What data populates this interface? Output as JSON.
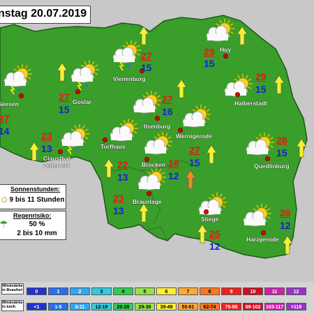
{
  "title": "nstag 20.07.2019",
  "sun": {
    "label": "Sonnenstunden:",
    "value": "9 bis 11 Stunden"
  },
  "rain": {
    "label": "Regenrisiko:",
    "percent": "50 %",
    "amount": "2 bis 10 mm"
  },
  "cities": [
    {
      "name": "Seesen",
      "tmax": "",
      "tmin": ""
    },
    {
      "name": "Goslar",
      "tmax": "27",
      "tmin": "15"
    },
    {
      "name": "Vienenburg",
      "tmax": "27",
      "tmin": "15"
    },
    {
      "name": "Huy",
      "tmax": "29",
      "tmin": "15"
    },
    {
      "name": "Halberstadt",
      "tmax": "29",
      "tmin": "15"
    },
    {
      "name": "Ilsenburg",
      "tmax": "27",
      "tmin": "16"
    },
    {
      "name": "Wernigerode",
      "tmax": "27",
      "tmin": "15"
    },
    {
      "name": "Clausthal-",
      "tmax": "23",
      "tmin": "13"
    },
    {
      "name": "Zellerfeld",
      "tmax": "",
      "tmin": ""
    },
    {
      "name": "Torfhaus",
      "tmax": "22",
      "tmin": "13"
    },
    {
      "name": "Brocken",
      "tmax": "18",
      "tmin": "12"
    },
    {
      "name": "Quedlinburg",
      "tmax": "28",
      "tmin": "15"
    },
    {
      "name": "Braunlage",
      "tmax": "23",
      "tmin": "13"
    },
    {
      "name": "Stiege",
      "tmax": "25",
      "tmin": "12"
    },
    {
      "name": "Harzgerode",
      "tmax": "26",
      "tmin": "12"
    },
    {
      "name": "",
      "tmax": "27",
      "tmin": "14"
    }
  ],
  "legend": {
    "beaufort_label": "Windstärke in Beaufort",
    "kmh_label": "Windstärke in km/h",
    "beaufort": [
      "0",
      "1",
      "2",
      "3",
      "4",
      "5",
      "6",
      "7",
      "8",
      "9",
      "10",
      "11",
      "12"
    ],
    "kmh": [
      "<1",
      "1-5",
      "6-11",
      "12-19",
      "20-28",
      "29-38",
      "39-49",
      "50-61",
      "62-74",
      "75-88",
      "89-102",
      "103-117",
      ">118"
    ],
    "colors": [
      "#2233cc",
      "#2a6ee8",
      "#34a6f0",
      "#33ccdd",
      "#33cc55",
      "#99e04a",
      "#ffee33",
      "#ffaa33",
      "#ff7722",
      "#ee2222",
      "#cc1122",
      "#cc22aa",
      "#9933cc"
    ]
  },
  "colors": {
    "land": "#3a9e2a",
    "outline": "#1d5a16",
    "outside": "#c8c8c8",
    "arrow_yellow": "#f5f032",
    "arrow_orange": "#f08a24"
  },
  "icons": {
    "sun_cloud": "partly-cloudy-icon",
    "thunder": "thunderstorm-icon",
    "wind": "wind-arrow-icon"
  }
}
